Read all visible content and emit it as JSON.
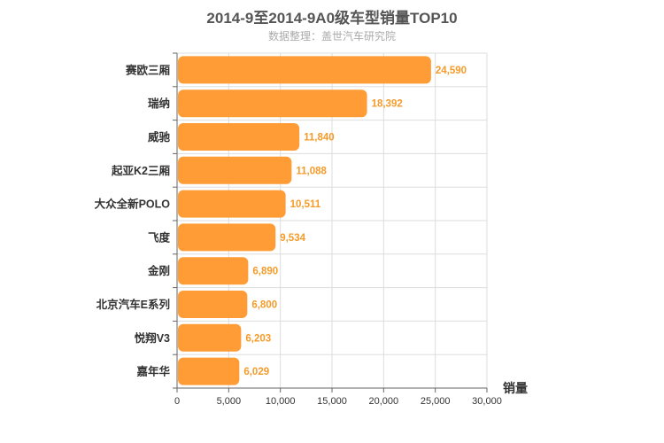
{
  "chart_data": {
    "type": "bar",
    "orientation": "horizontal",
    "title": "2014-9至2014-9A0级车型销量TOP10",
    "subtitle": "数据整理：盖世汽车研究院",
    "categories": [
      "赛欧三厢",
      "瑞纳",
      "威驰",
      "起亚K2三厢",
      "大众全新POLO",
      "飞度",
      "金刚",
      "北京汽车E系列",
      "悦翔V3",
      "嘉年华"
    ],
    "series": [
      {
        "values": [
          24590,
          18392,
          11840,
          11088,
          10511,
          9534,
          6890,
          6800,
          6203,
          6029
        ]
      }
    ],
    "value_labels": [
      "24,590",
      "18,392",
      "11,840",
      "11,088",
      "10,511",
      "9,534",
      "6,890",
      "6,800",
      "6,203",
      "6,029"
    ],
    "xlabel": "销量",
    "ylabel": "",
    "xlim": [
      0,
      30000
    ],
    "xticks": [
      0,
      5000,
      10000,
      15000,
      20000,
      25000,
      30000
    ],
    "xtick_labels": [
      "0",
      "5,000",
      "10,000",
      "15,000",
      "20,000",
      "25,000",
      "30,000"
    ],
    "grid": true,
    "bar_color": "#ff9c35",
    "label_color": "#f59b2a"
  }
}
